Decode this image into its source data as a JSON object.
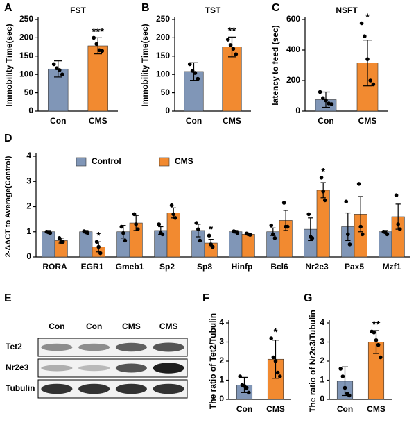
{
  "chart_data": [
    {
      "type": "bar",
      "panel": "A",
      "title": "FST",
      "ylabel": "Immobility Time(sec)",
      "categories": [
        "Con",
        "CMS"
      ],
      "colors": [
        "#8096b7",
        "#f28a30"
      ],
      "values": [
        115,
        178
      ],
      "errors": [
        22,
        22
      ],
      "points": [
        [
          128,
          117,
          112,
          100
        ],
        [
          200,
          183,
          166,
          164
        ]
      ],
      "significance": [
        null,
        "***"
      ],
      "ylim": [
        0,
        250
      ],
      "yticks": [
        0,
        50,
        100,
        150,
        200,
        250
      ]
    },
    {
      "type": "bar",
      "panel": "B",
      "title": "TST",
      "ylabel": "Immobility Time(sec)",
      "categories": [
        "Con",
        "CMS"
      ],
      "colors": [
        "#8096b7",
        "#f28a30"
      ],
      "values": [
        108,
        175
      ],
      "errors": [
        24,
        27
      ],
      "points": [
        [
          128,
          110,
          104,
          88
        ],
        [
          195,
          180,
          170,
          155
        ]
      ],
      "significance": [
        null,
        "**"
      ],
      "ylim": [
        0,
        250
      ],
      "yticks": [
        0,
        50,
        100,
        150,
        200,
        250
      ]
    },
    {
      "type": "bar",
      "panel": "C",
      "title": "NSFT",
      "ylabel": "latency to feed (sec)",
      "categories": [
        "Con",
        "CMS"
      ],
      "colors": [
        "#8096b7",
        "#f28a30"
      ],
      "values": [
        75,
        315
      ],
      "errors": [
        50,
        150
      ],
      "points": [
        [
          125,
          85,
          70,
          50,
          45
        ],
        [
          575,
          490,
          340,
          200,
          175
        ]
      ],
      "significance": [
        null,
        "*"
      ],
      "ylim": [
        0,
        600
      ],
      "yticks": [
        0,
        200,
        400,
        600
      ]
    },
    {
      "type": "grouped-bar",
      "panel": "D",
      "ylabel": "2-ΔΔCT to Average(Control)",
      "categories": [
        "RORA",
        "EGR1",
        "Gmeb1",
        "Sp2",
        "Sp8",
        "Hinfp",
        "Bcl6",
        "Nr2e3",
        "Pax5",
        "Mzf1"
      ],
      "series": [
        {
          "name": "Control",
          "color": "#8096b7",
          "values": [
            1.0,
            1.0,
            1.0,
            1.05,
            1.05,
            1.0,
            1.0,
            1.1,
            1.2,
            1.0
          ],
          "errors": [
            0.05,
            0.05,
            0.25,
            0.15,
            0.25,
            0.05,
            0.15,
            0.45,
            0.55,
            0.05
          ],
          "points": [
            [
              1.0,
              0.98,
              0.95
            ],
            [
              1.02,
              0.98,
              0.95
            ],
            [
              1.2,
              0.95,
              0.65
            ],
            [
              1.3,
              0.95,
              0.9
            ],
            [
              1.35,
              1.1,
              0.65
            ],
            [
              1.02,
              1.0,
              0.95
            ],
            [
              1.25,
              0.9,
              0.75
            ],
            [
              1.7,
              0.8,
              0.75
            ],
            [
              2.2,
              0.9,
              0.5
            ],
            [
              1.0,
              0.98,
              0.9
            ]
          ],
          "significance": [
            null,
            null,
            null,
            null,
            null,
            null,
            null,
            null,
            null,
            null
          ]
        },
        {
          "name": "CMS",
          "color": "#f28a30",
          "values": [
            0.65,
            0.4,
            1.35,
            1.75,
            0.55,
            0.9,
            1.45,
            2.65,
            1.7,
            1.6
          ],
          "errors": [
            0.1,
            0.2,
            0.3,
            0.2,
            0.15,
            0.03,
            0.4,
            0.3,
            0.7,
            0.5
          ],
          "points": [
            [
              0.75,
              0.6,
              0.6
            ],
            [
              0.6,
              0.4,
              0.15
            ],
            [
              1.7,
              1.3,
              1.1
            ],
            [
              2.05,
              1.7,
              1.55
            ],
            [
              0.85,
              0.5,
              0.4
            ],
            [
              0.93,
              0.9,
              0.88
            ],
            [
              2.15,
              1.2,
              1.2
            ],
            [
              3.15,
              2.6,
              2.25
            ],
            [
              2.9,
              1.2,
              0.9
            ],
            [
              2.45,
              1.3,
              1.1
            ]
          ],
          "significance": [
            null,
            "*",
            null,
            null,
            "*",
            null,
            null,
            "*",
            null,
            null
          ]
        }
      ],
      "ylim": [
        0,
        4
      ],
      "yticks": [
        0,
        1,
        2,
        3,
        4
      ]
    },
    {
      "type": "blot",
      "panel": "E",
      "lanes": [
        "Con",
        "Con",
        "CMS",
        "CMS"
      ],
      "rows": [
        "Tet2",
        "Nr2e3",
        "Tubulin"
      ]
    },
    {
      "type": "bar",
      "panel": "F",
      "ylabel": "The ratio of Tet2/Tubulin",
      "categories": [
        "Con",
        "CMS"
      ],
      "colors": [
        "#8096b7",
        "#f28a30"
      ],
      "values": [
        0.75,
        2.1
      ],
      "errors": [
        0.4,
        1.0
      ],
      "points": [
        [
          1.2,
          0.75,
          0.7,
          0.6,
          0.35
        ],
        [
          3.2,
          2.2,
          2.0,
          1.4,
          1.2
        ]
      ],
      "significance": [
        null,
        "*"
      ],
      "ylim": [
        0,
        4
      ],
      "yticks": [
        0,
        1,
        2,
        3,
        4
      ]
    },
    {
      "type": "bar",
      "panel": "G",
      "ylabel": "The ratio of Nr2e3/Tubulin",
      "categories": [
        "Con",
        "CMS"
      ],
      "colors": [
        "#8096b7",
        "#f28a30"
      ],
      "values": [
        0.95,
        3.0
      ],
      "errors": [
        0.75,
        0.6
      ],
      "points": [
        [
          1.6,
          1.2,
          0.6,
          0.3,
          0.2
        ],
        [
          3.55,
          3.5,
          3.1,
          2.85,
          2.2
        ]
      ],
      "significance": [
        null,
        "**"
      ],
      "ylim": [
        0,
        4
      ],
      "yticks": [
        0,
        1,
        2,
        3,
        4
      ]
    }
  ]
}
